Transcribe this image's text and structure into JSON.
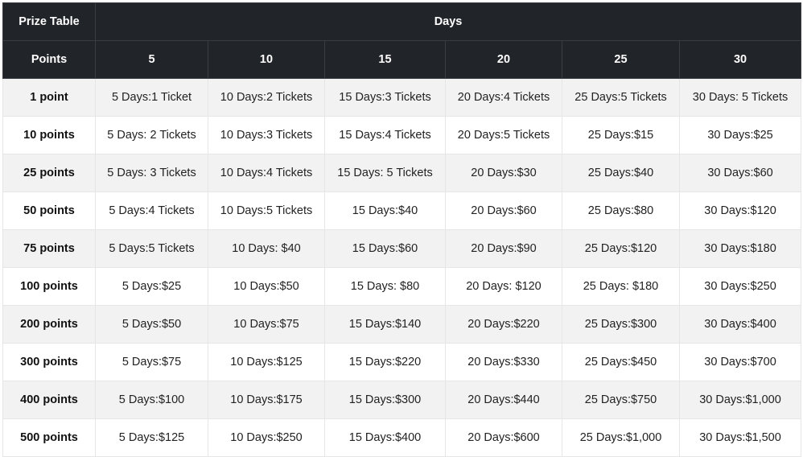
{
  "header": {
    "corner_label": "Prize Table",
    "group_label": "Days",
    "points_label": "Points",
    "day_columns": [
      "5",
      "10",
      "15",
      "20",
      "25",
      "30"
    ]
  },
  "rows": [
    {
      "points": "1 point",
      "cells": [
        "5 Days:1 Ticket",
        "10 Days:2 Tickets",
        "15 Days:3 Tickets",
        "20 Days:4 Tickets",
        "25 Days:5 Tickets",
        "30 Days: 5 Tickets"
      ]
    },
    {
      "points": "10 points",
      "cells": [
        "5 Days: 2 Tickets",
        "10 Days:3 Tickets",
        "15 Days:4 Tickets",
        "20 Days:5 Tickets",
        "25 Days:$15",
        "30 Days:$25"
      ]
    },
    {
      "points": "25 points",
      "cells": [
        "5 Days: 3 Tickets",
        "10 Days:4 Tickets",
        "15 Days: 5 Tickets",
        "20 Days:$30",
        "25 Days:$40",
        "30 Days:$60"
      ]
    },
    {
      "points": "50 points",
      "cells": [
        "5 Days:4 Tickets",
        "10 Days:5 Tickets",
        "15 Days:$40",
        "20 Days:$60",
        "25 Days:$80",
        "30 Days:$120"
      ]
    },
    {
      "points": "75 points",
      "cells": [
        "5 Days:5 Tickets",
        "10 Days: $40",
        "15 Days:$60",
        "20 Days:$90",
        "25 Days:$120",
        "30 Days:$180"
      ]
    },
    {
      "points": "100 points",
      "cells": [
        "5 Days:$25",
        "10 Days:$50",
        "15 Days: $80",
        "20 Days: $120",
        "25 Days: $180",
        "30 Days:$250"
      ]
    },
    {
      "points": "200 points",
      "cells": [
        "5 Days:$50",
        "10 Days:$75",
        "15 Days:$140",
        "20 Days:$220",
        "25 Days:$300",
        "30 Days:$400"
      ]
    },
    {
      "points": "300 points",
      "cells": [
        "5 Days:$75",
        "10 Days:$125",
        "15 Days:$220",
        "20 Days:$330",
        "25 Days:$450",
        "30 Days:$700"
      ]
    },
    {
      "points": "400 points",
      "cells": [
        "5 Days:$100",
        "10 Days:$175",
        "15 Days:$300",
        "20 Days:$440",
        "25 Days:$750",
        "30 Days:$1,000"
      ]
    },
    {
      "points": "500 points",
      "cells": [
        "5 Days:$125",
        "10 Days:$250",
        "15 Days:$400",
        "20 Days:$600",
        "25 Days:$1,000",
        "30 Days:$1,500"
      ]
    }
  ]
}
